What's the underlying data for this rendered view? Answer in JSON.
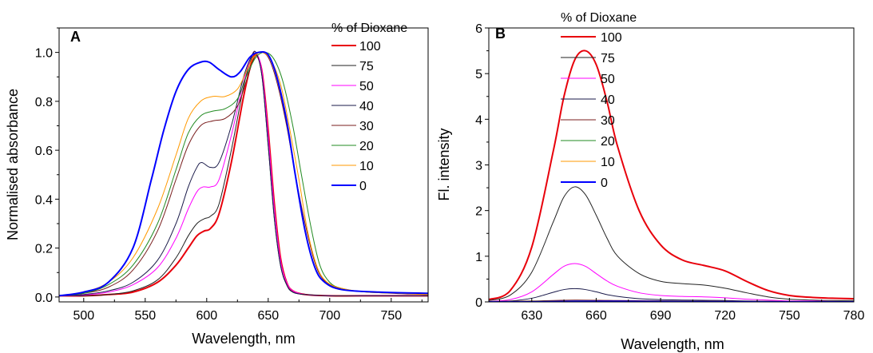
{
  "chart_data": [
    {
      "panel": "A",
      "type": "line",
      "xlabel": "Wavelength, nm",
      "ylabel": "Normalised absorbance",
      "xlim": [
        480,
        780
      ],
      "ylim": [
        -0.02,
        1.1
      ],
      "xticks": [
        500,
        550,
        600,
        650,
        700,
        750
      ],
      "yticks": [
        0.0,
        0.2,
        0.4,
        0.6,
        0.8,
        1.0
      ],
      "ytick_labels": [
        "0.0",
        "0.2",
        "0.4",
        "0.6",
        "0.8",
        "1.0"
      ],
      "legend_title": "% of Dioxane",
      "legend_position": "top-right",
      "series": [
        {
          "name": "100",
          "color": "#e8000b",
          "width": 2,
          "x": [
            480,
            500,
            520,
            540,
            560,
            575,
            585,
            592,
            598,
            603,
            610,
            620,
            630,
            636,
            640,
            645,
            650,
            655,
            660,
            665,
            670,
            680,
            700,
            740,
            780
          ],
          "y": [
            0.005,
            0.005,
            0.01,
            0.02,
            0.06,
            0.13,
            0.2,
            0.25,
            0.27,
            0.28,
            0.34,
            0.55,
            0.82,
            0.95,
            0.99,
            0.92,
            0.68,
            0.38,
            0.16,
            0.06,
            0.025,
            0.01,
            0.005,
            0.005,
            0.005
          ]
        },
        {
          "name": "75",
          "color": "#222222",
          "width": 1,
          "x": [
            480,
            500,
            520,
            540,
            560,
            575,
            585,
            592,
            598,
            603,
            610,
            620,
            630,
            636,
            640,
            645,
            650,
            655,
            660,
            665,
            670,
            680,
            700,
            740,
            780
          ],
          "y": [
            0.005,
            0.005,
            0.01,
            0.025,
            0.07,
            0.16,
            0.25,
            0.3,
            0.32,
            0.33,
            0.38,
            0.6,
            0.86,
            0.97,
            1.0,
            0.9,
            0.62,
            0.32,
            0.13,
            0.05,
            0.02,
            0.01,
            0.005,
            0.005,
            0.005
          ]
        },
        {
          "name": "50",
          "color": "#ff00ff",
          "width": 1,
          "x": [
            480,
            500,
            520,
            540,
            560,
            575,
            585,
            592,
            597,
            603,
            610,
            620,
            630,
            636,
            640,
            645,
            650,
            655,
            660,
            665,
            670,
            680,
            700,
            740,
            780
          ],
          "y": [
            0.005,
            0.008,
            0.02,
            0.05,
            0.12,
            0.24,
            0.36,
            0.43,
            0.45,
            0.45,
            0.48,
            0.66,
            0.88,
            0.98,
            1.0,
            0.92,
            0.66,
            0.36,
            0.15,
            0.06,
            0.025,
            0.01,
            0.005,
            0.005,
            0.005
          ]
        },
        {
          "name": "40",
          "color": "#1a1a4a",
          "width": 1,
          "x": [
            480,
            500,
            520,
            540,
            560,
            575,
            585,
            592,
            596,
            603,
            610,
            620,
            630,
            636,
            640,
            645,
            650,
            655,
            660,
            665,
            670,
            680,
            700,
            740,
            780
          ],
          "y": [
            0.005,
            0.01,
            0.025,
            0.06,
            0.15,
            0.3,
            0.45,
            0.53,
            0.55,
            0.53,
            0.55,
            0.7,
            0.9,
            0.98,
            1.0,
            0.9,
            0.62,
            0.32,
            0.13,
            0.05,
            0.02,
            0.01,
            0.005,
            0.005,
            0.005
          ]
        },
        {
          "name": "30",
          "color": "#7a1e1e",
          "width": 1,
          "x": [
            480,
            500,
            520,
            540,
            560,
            575,
            585,
            595,
            605,
            615,
            625,
            632,
            638,
            643,
            650,
            657,
            665,
            672,
            680,
            688,
            695,
            705,
            720,
            750,
            780
          ],
          "y": [
            0.005,
            0.015,
            0.04,
            0.11,
            0.27,
            0.48,
            0.62,
            0.7,
            0.72,
            0.73,
            0.78,
            0.88,
            0.97,
            1.0,
            0.98,
            0.88,
            0.7,
            0.5,
            0.3,
            0.14,
            0.07,
            0.04,
            0.025,
            0.015,
            0.01
          ]
        },
        {
          "name": "20",
          "color": "#228b22",
          "width": 1,
          "x": [
            480,
            500,
            520,
            540,
            560,
            575,
            585,
            595,
            605,
            615,
            625,
            632,
            640,
            648,
            655,
            662,
            670,
            677,
            685,
            692,
            700,
            710,
            730,
            760,
            780
          ],
          "y": [
            0.005,
            0.015,
            0.05,
            0.13,
            0.3,
            0.52,
            0.67,
            0.74,
            0.76,
            0.77,
            0.81,
            0.9,
            0.98,
            1.0,
            0.97,
            0.88,
            0.7,
            0.5,
            0.28,
            0.13,
            0.06,
            0.035,
            0.02,
            0.015,
            0.01
          ]
        },
        {
          "name": "10",
          "color": "#ff9900",
          "width": 1,
          "x": [
            480,
            500,
            520,
            540,
            560,
            575,
            585,
            595,
            605,
            615,
            625,
            632,
            638,
            645,
            652,
            660,
            667,
            675,
            682,
            690,
            698,
            710,
            730,
            760,
            780
          ],
          "y": [
            0.005,
            0.02,
            0.06,
            0.16,
            0.36,
            0.58,
            0.73,
            0.8,
            0.82,
            0.82,
            0.85,
            0.92,
            0.98,
            1.0,
            0.97,
            0.87,
            0.7,
            0.48,
            0.27,
            0.12,
            0.06,
            0.035,
            0.02,
            0.015,
            0.01
          ]
        },
        {
          "name": "0",
          "color": "#0000ff",
          "width": 2,
          "x": [
            480,
            500,
            520,
            540,
            555,
            565,
            575,
            585,
            595,
            602,
            610,
            620,
            627,
            635,
            642,
            650,
            657,
            665,
            672,
            680,
            688,
            696,
            710,
            740,
            780
          ],
          "y": [
            0.005,
            0.02,
            0.06,
            0.2,
            0.48,
            0.68,
            0.84,
            0.93,
            0.96,
            0.96,
            0.93,
            0.9,
            0.92,
            0.98,
            1.0,
            0.99,
            0.9,
            0.72,
            0.5,
            0.27,
            0.12,
            0.06,
            0.03,
            0.02,
            0.015
          ]
        }
      ]
    },
    {
      "panel": "B",
      "type": "line",
      "xlabel": "Wavelength, nm",
      "ylabel": "Fl. intensity",
      "xlim": [
        610,
        780
      ],
      "ylim": [
        0,
        6
      ],
      "xticks": [
        630,
        660,
        690,
        720,
        750,
        780
      ],
      "yticks": [
        0,
        1,
        2,
        3,
        4,
        5,
        6
      ],
      "ytick_labels": [
        "0",
        "1",
        "2",
        "3",
        "4",
        "5",
        "6"
      ],
      "legend_title": "% of Dioxane",
      "legend_position": "top-right",
      "series": [
        {
          "name": "100",
          "color": "#e8000b",
          "width": 2,
          "x": [
            610,
            620,
            630,
            640,
            645,
            650,
            655,
            660,
            665,
            670,
            680,
            690,
            700,
            710,
            720,
            730,
            740,
            750,
            760,
            770,
            780
          ],
          "y": [
            0.05,
            0.25,
            1.2,
            3.3,
            4.5,
            5.3,
            5.5,
            5.2,
            4.4,
            3.4,
            2.0,
            1.25,
            0.92,
            0.8,
            0.68,
            0.45,
            0.25,
            0.14,
            0.1,
            0.08,
            0.07
          ]
        },
        {
          "name": "75",
          "color": "#222222",
          "width": 1,
          "x": [
            610,
            620,
            630,
            640,
            645,
            650,
            655,
            660,
            665,
            670,
            680,
            690,
            700,
            710,
            720,
            730,
            740,
            750,
            760,
            770,
            780
          ],
          "y": [
            0.03,
            0.15,
            0.65,
            1.75,
            2.3,
            2.52,
            2.35,
            1.9,
            1.4,
            1.0,
            0.62,
            0.45,
            0.4,
            0.37,
            0.3,
            0.2,
            0.11,
            0.06,
            0.04,
            0.03,
            0.03
          ]
        },
        {
          "name": "50",
          "color": "#ff00ff",
          "width": 1,
          "x": [
            610,
            620,
            630,
            640,
            645,
            650,
            655,
            660,
            665,
            670,
            680,
            690,
            700,
            710,
            720,
            730,
            740,
            750,
            760,
            770,
            780
          ],
          "y": [
            0.01,
            0.05,
            0.22,
            0.6,
            0.78,
            0.84,
            0.78,
            0.62,
            0.46,
            0.34,
            0.2,
            0.14,
            0.12,
            0.11,
            0.09,
            0.06,
            0.04,
            0.02,
            0.02,
            0.01,
            0.01
          ]
        },
        {
          "name": "40",
          "color": "#1a1a4a",
          "width": 1,
          "x": [
            610,
            620,
            630,
            640,
            645,
            650,
            655,
            660,
            665,
            670,
            680,
            690,
            700,
            710,
            720,
            730,
            740,
            750,
            760,
            770,
            780
          ],
          "y": [
            0.005,
            0.02,
            0.08,
            0.21,
            0.27,
            0.29,
            0.27,
            0.22,
            0.16,
            0.12,
            0.07,
            0.05,
            0.04,
            0.035,
            0.03,
            0.02,
            0.015,
            0.01,
            0.005,
            0.005,
            0.005
          ]
        },
        {
          "name": "30",
          "color": "#7a1e1e",
          "width": 1,
          "x": [
            610,
            630,
            650,
            670,
            700,
            740,
            780
          ],
          "y": [
            0.01,
            0.02,
            0.04,
            0.03,
            0.02,
            0.01,
            0.01
          ]
        },
        {
          "name": "20",
          "color": "#228b22",
          "width": 1,
          "x": [
            610,
            630,
            650,
            670,
            700,
            740,
            780
          ],
          "y": [
            0.005,
            0.01,
            0.02,
            0.015,
            0.01,
            0.005,
            0.005
          ]
        },
        {
          "name": "10",
          "color": "#ff9900",
          "width": 1,
          "x": [
            610,
            630,
            650,
            670,
            700,
            740,
            780
          ],
          "y": [
            0.005,
            0.008,
            0.015,
            0.01,
            0.008,
            0.005,
            0.005
          ]
        },
        {
          "name": "0",
          "color": "#0000ff",
          "width": 2,
          "x": [
            610,
            630,
            650,
            670,
            700,
            740,
            780
          ],
          "y": [
            0.0,
            0.0,
            0.01,
            0.01,
            0.005,
            0.0,
            0.0
          ]
        }
      ]
    }
  ]
}
